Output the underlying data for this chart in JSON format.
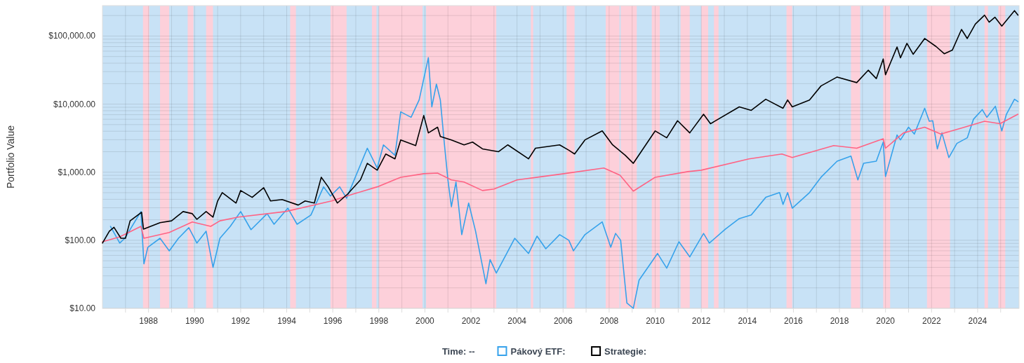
{
  "chart_data": {
    "type": "line",
    "ylabel": "Portfolio Value",
    "log": true,
    "grid": true,
    "legend": "bottom",
    "marker": "none",
    "line_style": "solid",
    "annotations": [
      "Time: --"
    ],
    "xlim": [
      1986.0,
      2025.8
    ],
    "xticks": [
      {
        "value": 1987,
        "label": null
      },
      1988,
      {
        "value": 1989,
        "label": null
      },
      1990,
      {
        "value": 1991,
        "label": null
      },
      1992,
      {
        "value": 1993,
        "label": null
      },
      1994,
      {
        "value": 1995,
        "label": null
      },
      1996,
      {
        "value": 1997,
        "label": null
      },
      1998,
      {
        "value": 1999,
        "label": null
      },
      2000,
      {
        "value": 2001,
        "label": null
      },
      2002,
      {
        "value": 2003,
        "label": null
      },
      2004,
      {
        "value": 2005,
        "label": null
      },
      2006,
      {
        "value": 2007,
        "label": null
      },
      2008,
      {
        "value": 2009,
        "label": null
      },
      2010,
      {
        "value": 2011,
        "label": null
      },
      2012,
      {
        "value": 2013,
        "label": null
      },
      2014,
      {
        "value": 2015,
        "label": null
      },
      2016,
      {
        "value": 2017,
        "label": null
      },
      2018,
      {
        "value": 2019,
        "label": null
      },
      2020,
      {
        "value": 2021,
        "label": null
      },
      2022,
      {
        "value": 2023,
        "label": null
      },
      2024,
      {
        "value": 2025,
        "label": null
      }
    ],
    "ylim": [
      10,
      280000
    ],
    "yticks": [
      {
        "value": 10,
        "label": "$10.00"
      },
      {
        "value": 20,
        "label": null
      },
      {
        "value": 30,
        "label": null
      },
      {
        "value": 40,
        "label": null
      },
      {
        "value": 50,
        "label": null
      },
      {
        "value": 60,
        "label": null
      },
      {
        "value": 70,
        "label": null
      },
      {
        "value": 80,
        "label": null
      },
      {
        "value": 90,
        "label": null
      },
      {
        "value": 100,
        "label": "$100.00"
      },
      {
        "value": 200,
        "label": null
      },
      {
        "value": 300,
        "label": null
      },
      {
        "value": 400,
        "label": null
      },
      {
        "value": 500,
        "label": null
      },
      {
        "value": 600,
        "label": null
      },
      {
        "value": 700,
        "label": null
      },
      {
        "value": 800,
        "label": null
      },
      {
        "value": 900,
        "label": null
      },
      {
        "value": 1000,
        "label": "$1,000.00"
      },
      {
        "value": 2000,
        "label": null
      },
      {
        "value": 3000,
        "label": null
      },
      {
        "value": 4000,
        "label": null
      },
      {
        "value": 5000,
        "label": null
      },
      {
        "value": 6000,
        "label": null
      },
      {
        "value": 7000,
        "label": null
      },
      {
        "value": 8000,
        "label": null
      },
      {
        "value": 9000,
        "label": null
      },
      {
        "value": 10000,
        "label": "$10,000.00"
      },
      {
        "value": 20000,
        "label": null
      },
      {
        "value": 30000,
        "label": null
      },
      {
        "value": 40000,
        "label": null
      },
      {
        "value": 50000,
        "label": null
      },
      {
        "value": 60000,
        "label": null
      },
      {
        "value": 70000,
        "label": null
      },
      {
        "value": 80000,
        "label": null
      },
      {
        "value": 90000,
        "label": null
      },
      {
        "value": 100000,
        "label": "$100,000.00"
      },
      {
        "value": 200000,
        "label": null
      }
    ],
    "bands": [
      {
        "axis": "x",
        "from": 1986.0,
        "to": 2025.8,
        "color": "#c8e2f6"
      },
      {
        "axis": "x",
        "from": 1987.76,
        "to": 1988.03,
        "color": "#fdd0da"
      },
      {
        "axis": "x",
        "from": 1988.5,
        "to": 1988.9,
        "color": "#fdd0da"
      },
      {
        "axis": "x",
        "from": 1989.7,
        "to": 1989.95,
        "color": "#fdd0da"
      },
      {
        "axis": "x",
        "from": 1990.5,
        "to": 1990.8,
        "color": "#fdd0da"
      },
      {
        "axis": "x",
        "from": 1994.15,
        "to": 1994.4,
        "color": "#fdd0da"
      },
      {
        "axis": "x",
        "from": 1995.9,
        "to": 1996.6,
        "color": "#fdd0da"
      },
      {
        "axis": "x",
        "from": 1997.7,
        "to": 1997.9,
        "color": "#fdd0da"
      },
      {
        "axis": "x",
        "from": 1998.0,
        "to": 1999.9,
        "color": "#fdd0da"
      },
      {
        "axis": "x",
        "from": 2000.05,
        "to": 2003.1,
        "color": "#fdd0da"
      },
      {
        "axis": "x",
        "from": 2004.6,
        "to": 2004.7,
        "color": "#fdd0da"
      },
      {
        "axis": "x",
        "from": 2006.15,
        "to": 2006.5,
        "color": "#fdd0da"
      },
      {
        "axis": "x",
        "from": 2007.85,
        "to": 2008.45,
        "color": "#fdd0da"
      },
      {
        "axis": "x",
        "from": 2008.5,
        "to": 2009.2,
        "color": "#fdd0da"
      },
      {
        "axis": "x",
        "from": 2009.85,
        "to": 2010.2,
        "color": "#fdd0da"
      },
      {
        "axis": "x",
        "from": 2011.1,
        "to": 2011.5,
        "color": "#fdd0da"
      },
      {
        "axis": "x",
        "from": 2012.0,
        "to": 2012.3,
        "color": "#fdd0da"
      },
      {
        "axis": "x",
        "from": 2012.55,
        "to": 2012.75,
        "color": "#fdd0da"
      },
      {
        "axis": "x",
        "from": 2015.7,
        "to": 2015.95,
        "color": "#fdd0da"
      },
      {
        "axis": "x",
        "from": 2018.5,
        "to": 2018.9,
        "color": "#fdd0da"
      },
      {
        "axis": "x",
        "from": 2019.9,
        "to": 2020.2,
        "color": "#fdd0da"
      },
      {
        "axis": "x",
        "from": 2021.8,
        "to": 2022.8,
        "color": "#fdd0da"
      },
      {
        "axis": "x",
        "from": 2024.3,
        "to": 2024.45,
        "color": "#fdd0da"
      },
      {
        "axis": "x",
        "from": 2024.9,
        "to": 2025.2,
        "color": "#fdd0da"
      }
    ],
    "series": [
      {
        "name": "Pákový ETF:",
        "color": "#36a2eb",
        "x": [
          1986.35,
          1986.75,
          1986.97,
          1987.67,
          1987.8,
          1987.97,
          1988.5,
          1988.9,
          1989.3,
          1989.75,
          1990.1,
          1990.5,
          1990.8,
          1991.1,
          1991.55,
          1992.0,
          1992.45,
          1993.15,
          1993.45,
          1994.05,
          1994.45,
          1995.05,
          1995.6,
          1995.9,
          1996.3,
          1996.6,
          1997.5,
          1997.93,
          1998.2,
          1998.7,
          1998.95,
          1999.4,
          1999.75,
          2000.15,
          2000.3,
          2000.5,
          2000.67,
          2000.85,
          2001.0,
          2001.15,
          2001.35,
          2001.6,
          2001.9,
          2002.2,
          2002.65,
          2002.83,
          2003.1,
          2003.9,
          2004.5,
          2004.87,
          2005.25,
          2005.85,
          2006.25,
          2006.45,
          2006.95,
          2007.7,
          2008.07,
          2008.28,
          2008.5,
          2008.77,
          2009.05,
          2009.3,
          2010.1,
          2010.5,
          2011.03,
          2011.5,
          2012.1,
          2012.35,
          2013.05,
          2013.65,
          2014.17,
          2014.8,
          2015.4,
          2015.55,
          2015.75,
          2015.95,
          2016.7,
          2017.2,
          2017.9,
          2018.5,
          2018.8,
          2019.05,
          2019.6,
          2019.9,
          2020.0,
          2020.5,
          2020.65,
          2021.0,
          2021.25,
          2021.7,
          2021.9,
          2022.05,
          2022.25,
          2022.45,
          2022.75,
          2023.1,
          2023.55,
          2023.82,
          2024.2,
          2024.4,
          2024.77,
          2025.05,
          2025.25,
          2025.6,
          2025.75
        ],
        "values": [
          160,
          91,
          107,
          264,
          45,
          79,
          107,
          70,
          107,
          153,
          91,
          136,
          40,
          107,
          160,
          264,
          143,
          246,
          172,
          296,
          172,
          235,
          609,
          446,
          609,
          415,
          2250,
          1150,
          2520,
          1770,
          7700,
          6400,
          11500,
          48000,
          9100,
          19700,
          11500,
          2520,
          770,
          311,
          717,
          121,
          352,
          136,
          23,
          52,
          33,
          107,
          64,
          115,
          75,
          121,
          100,
          70,
          121,
          186,
          79,
          126,
          100,
          12,
          10,
          26,
          64,
          39,
          95,
          57,
          126,
          91,
          146,
          208,
          235,
          427,
          502,
          336,
          502,
          296,
          502,
          843,
          1450,
          1720,
          770,
          1350,
          1450,
          2770,
          865,
          3520,
          2980,
          4580,
          3630,
          8700,
          5600,
          5700,
          2200,
          3780,
          1640,
          2650,
          3200,
          6000,
          8300,
          6400,
          9300,
          4040,
          7100,
          11800,
          10900
        ]
      },
      {
        "color": "#ff6384",
        "x": [
          1986.0,
          1986.75,
          1987.67,
          1987.8,
          1988.9,
          1989.9,
          1990.7,
          1991.1,
          1991.9,
          1993.95,
          1995.95,
          1996.9,
          1997.93,
          1998.95,
          1999.95,
          2000.55,
          2001.15,
          2001.7,
          2002.5,
          2003.0,
          2004.0,
          2006.03,
          2007.77,
          2008.47,
          2009.05,
          2010.0,
          2011.42,
          2012.0,
          2014.07,
          2015.5,
          2015.95,
          2017.75,
          2018.75,
          2019.9,
          2020.0,
          2020.78,
          2021.7,
          2022.4,
          2023.3,
          2024.3,
          2024.97,
          2025.75
        ],
        "values": [
          95,
          112,
          160,
          107,
          130,
          186,
          160,
          193,
          219,
          264,
          378,
          479,
          609,
          843,
          950,
          970,
          770,
          717,
          538,
          565,
          770,
          950,
          1150,
          905,
          527,
          843,
          1020,
          1070,
          1570,
          1850,
          1640,
          2460,
          2250,
          3100,
          2250,
          3780,
          4580,
          3630,
          4450,
          5600,
          5150,
          7100
        ]
      },
      {
        "name": "Strategie:",
        "color": "#000000",
        "x": [
          1986.0,
          1986.3,
          1986.5,
          1986.8,
          1987.0,
          1987.2,
          1987.7,
          1987.78,
          1988.5,
          1989.0,
          1989.5,
          1989.9,
          1990.1,
          1990.5,
          1990.8,
          1991.0,
          1991.2,
          1991.8,
          1992.0,
          1992.5,
          1993.0,
          1993.3,
          1993.8,
          1994.5,
          1994.8,
          1995.2,
          1995.5,
          1995.8,
          1996.2,
          1996.65,
          1997.2,
          1997.5,
          1997.93,
          1998.3,
          1998.7,
          1998.95,
          1999.6,
          1999.95,
          2000.15,
          2000.55,
          2000.67,
          2001.15,
          2001.7,
          2002.07,
          2002.5,
          2003.2,
          2003.6,
          2004.5,
          2004.8,
          2005.85,
          2006.25,
          2006.5,
          2006.95,
          2007.7,
          2008.15,
          2008.7,
          2009.05,
          2010.0,
          2010.5,
          2010.97,
          2011.5,
          2012.1,
          2012.4,
          2013.65,
          2014.17,
          2014.8,
          2015.55,
          2015.75,
          2015.95,
          2016.7,
          2017.2,
          2017.9,
          2018.75,
          2019.25,
          2019.6,
          2019.9,
          2020.0,
          2020.5,
          2020.65,
          2020.93,
          2021.2,
          2021.7,
          2022.2,
          2022.55,
          2022.9,
          2023.3,
          2023.55,
          2023.9,
          2024.3,
          2024.5,
          2024.75,
          2025.05,
          2025.6,
          2025.75
        ],
        "values": [
          91,
          136,
          155,
          107,
          107,
          193,
          258,
          146,
          181,
          193,
          264,
          246,
          203,
          264,
          219,
          378,
          502,
          352,
          538,
          427,
          592,
          378,
          396,
          329,
          378,
          352,
          843,
          609,
          352,
          479,
          770,
          1350,
          1070,
          1850,
          1570,
          2980,
          2460,
          6800,
          3780,
          4580,
          3350,
          2980,
          2520,
          2770,
          2200,
          2000,
          2520,
          1570,
          2250,
          2520,
          2100,
          1850,
          2980,
          4040,
          2520,
          1770,
          1350,
          4040,
          3200,
          5700,
          3780,
          7100,
          5150,
          9100,
          8100,
          11800,
          8700,
          11500,
          9100,
          11500,
          18500,
          25000,
          20700,
          31500,
          23700,
          46000,
          27000,
          69000,
          48000,
          78000,
          54000,
          92000,
          70000,
          55000,
          62000,
          125000,
          92000,
          150000,
          203000,
          160000,
          189000,
          140000,
          236000,
          203000
        ]
      }
    ]
  }
}
